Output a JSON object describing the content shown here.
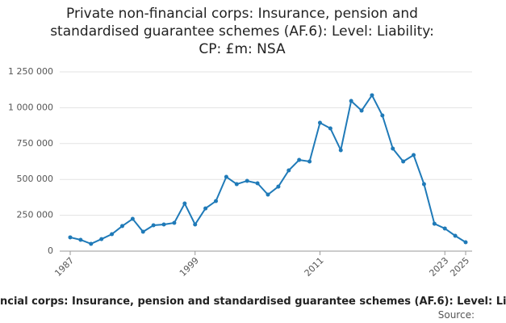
{
  "chart_data": {
    "type": "line",
    "title": "Private non-financial corps: Insurance, pension and standardised guarantee schemes (AF.6): Level: Liability: CP: £m: NSA",
    "caption": "ncial corps: Insurance, pension and standardised guarantee schemes (AF.6): Level: Li",
    "source": "Source:",
    "x": [
      1987,
      1988,
      1989,
      1990,
      1991,
      1992,
      1993,
      1994,
      1995,
      1996,
      1997,
      1998,
      1999,
      2000,
      2001,
      2002,
      2003,
      2004,
      2005,
      2006,
      2007,
      2008,
      2009,
      2010,
      2011,
      2012,
      2013,
      2014,
      2015,
      2016,
      2017,
      2018,
      2019,
      2020,
      2021,
      2022,
      2023,
      2024,
      2025
    ],
    "values": [
      96000,
      79000,
      51000,
      84000,
      118000,
      175000,
      225000,
      135000,
      180000,
      186000,
      197000,
      332000,
      186000,
      298000,
      349000,
      518000,
      467000,
      490000,
      473000,
      394000,
      450000,
      563000,
      636000,
      625000,
      895000,
      856000,
      704000,
      1047000,
      980000,
      1087000,
      946000,
      715000,
      625000,
      670000,
      467000,
      191000,
      158000,
      107000,
      62000
    ],
    "color": "#1f7ab8",
    "xlim": [
      1987,
      2025
    ],
    "xticks": [
      1987,
      1999,
      2011,
      2023,
      2025
    ],
    "ylim": [
      0,
      1250000
    ],
    "yticks": [
      0,
      {
        "value": 250000,
        "label": "250 000"
      },
      {
        "value": 500000,
        "label": "500 000"
      },
      {
        "value": 750000,
        "label": "750 000"
      },
      {
        "value": 1000000,
        "label": "1 000 000"
      },
      {
        "value": 1250000,
        "label": "1 250 000"
      }
    ],
    "grid": true
  }
}
